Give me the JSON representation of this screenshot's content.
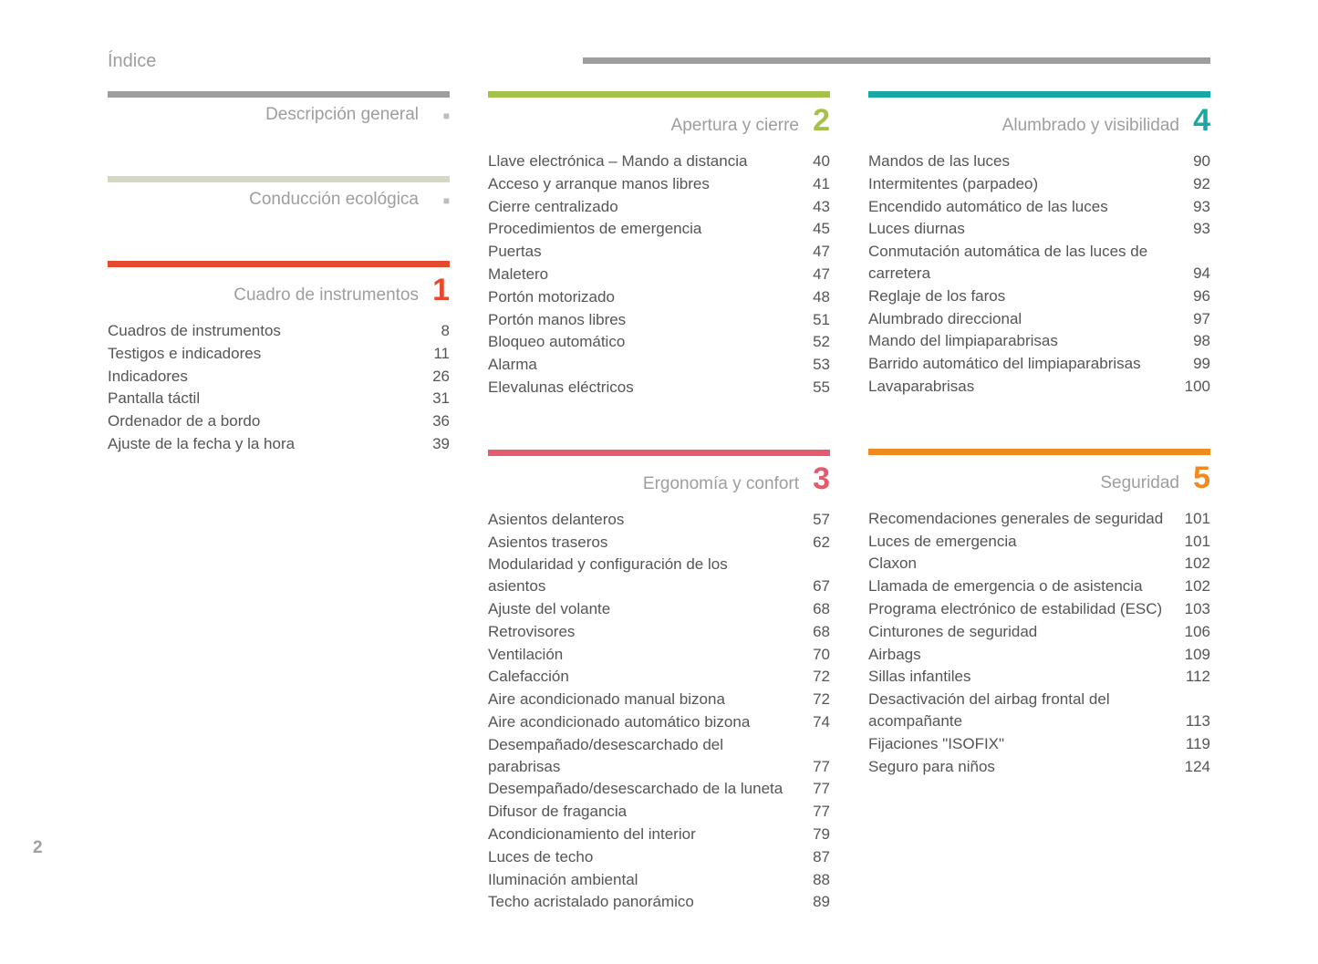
{
  "page_title": "Índice",
  "page_number": "2",
  "top_bar_color": "#9e9e9e",
  "columns": [
    {
      "sections": [
        {
          "title": "Descripción general",
          "rule_color": "#9e9e9e",
          "number": "",
          "number_color": "#9e9e9e",
          "marker": "■",
          "entries": []
        },
        {
          "title": "Conducción ecológica",
          "rule_color": "#d5d8c3",
          "number": "",
          "number_color": "#d5d8c3",
          "marker": "■",
          "entries": []
        },
        {
          "title": "Cuadro de instrumentos",
          "rule_color": "#e64a2e",
          "number": "1",
          "number_color": "#e64a2e",
          "marker": "",
          "entries": [
            {
              "label": "Cuadros de instrumentos",
              "page": "8"
            },
            {
              "label": "Testigos e indicadores",
              "page": "11"
            },
            {
              "label": "Indicadores",
              "page": "26"
            },
            {
              "label": "Pantalla táctil",
              "page": "31"
            },
            {
              "label": "Ordenador de a bordo",
              "page": "36"
            },
            {
              "label": "Ajuste de la fecha y la hora",
              "page": "39"
            }
          ]
        }
      ]
    },
    {
      "sections": [
        {
          "title": "Apertura y cierre",
          "rule_color": "#a4c14a",
          "number": "2",
          "number_color": "#a4c14a",
          "marker": "",
          "entries": [
            {
              "label": "Llave electrónica – Mando a distancia",
              "page": "40"
            },
            {
              "label": "Acceso y arranque manos libres",
              "page": "41"
            },
            {
              "label": "Cierre centralizado",
              "page": "43"
            },
            {
              "label": "Procedimientos de emergencia",
              "page": "45"
            },
            {
              "label": "Puertas",
              "page": "47"
            },
            {
              "label": "Maletero",
              "page": "47"
            },
            {
              "label": "Portón motorizado",
              "page": "48"
            },
            {
              "label": "Portón manos libres",
              "page": "51"
            },
            {
              "label": "Bloqueo automático",
              "page": "52"
            },
            {
              "label": "Alarma",
              "page": "53"
            },
            {
              "label": "Elevalunas eléctricos",
              "page": "55"
            }
          ]
        },
        {
          "title": "Ergonomía y confort",
          "rule_color": "#e35b6c",
          "number": "3",
          "number_color": "#e35b6c",
          "marker": "",
          "entries": [
            {
              "label": "Asientos delanteros",
              "page": "57"
            },
            {
              "label": "Asientos traseros",
              "page": "62"
            },
            {
              "label": "Modularidad y configuración de los asientos",
              "page": "67"
            },
            {
              "label": "Ajuste del volante",
              "page": "68"
            },
            {
              "label": "Retrovisores",
              "page": "68"
            },
            {
              "label": "Ventilación",
              "page": "70"
            },
            {
              "label": "Calefacción",
              "page": "72"
            },
            {
              "label": "Aire acondicionado manual bizona",
              "page": "72"
            },
            {
              "label": "Aire acondicionado automático bizona",
              "page": "74"
            },
            {
              "label": "Desempañado/desescarchado del parabrisas",
              "page": "77"
            },
            {
              "label": "Desempañado/desescarchado de la luneta",
              "page": "77"
            },
            {
              "label": "Difusor de fragancia",
              "page": "77"
            },
            {
              "label": "Acondicionamiento del interior",
              "page": "79"
            },
            {
              "label": "Luces de techo",
              "page": "87"
            },
            {
              "label": "Iluminación ambiental",
              "page": "88"
            },
            {
              "label": "Techo acristalado panorámico",
              "page": "89"
            }
          ]
        }
      ]
    },
    {
      "sections": [
        {
          "title": "Alumbrado y visibilidad",
          "rule_color": "#1aa8a5",
          "number": "4",
          "number_color": "#1aa8a5",
          "marker": "",
          "entries": [
            {
              "label": "Mandos de las luces",
              "page": "90"
            },
            {
              "label": "Intermitentes (parpadeo)",
              "page": "92"
            },
            {
              "label": "Encendido automático de las luces",
              "page": "93"
            },
            {
              "label": "Luces diurnas",
              "page": "93"
            },
            {
              "label": "Conmutación automática de las luces de carretera",
              "page": "94"
            },
            {
              "label": "Reglaje de los faros",
              "page": "96"
            },
            {
              "label": "Alumbrado direccional",
              "page": "97"
            },
            {
              "label": "Mando del limpiaparabrisas",
              "page": "98"
            },
            {
              "label": "Barrido automático del limpiaparabrisas",
              "page": "99"
            },
            {
              "label": "Lavaparabrisas",
              "page": "100"
            }
          ]
        },
        {
          "title": "Seguridad",
          "rule_color": "#f08a1e",
          "number": "5",
          "number_color": "#f08a1e",
          "marker": "",
          "entries": [
            {
              "label": "Recomendaciones generales de seguridad",
              "page": "101"
            },
            {
              "label": "Luces de emergencia",
              "page": "101"
            },
            {
              "label": "Claxon",
              "page": "102"
            },
            {
              "label": "Llamada de emergencia o de asistencia",
              "page": "102"
            },
            {
              "label": "Programa electrónico de estabilidad (ESC)",
              "page": "103"
            },
            {
              "label": "Cinturones de seguridad",
              "page": "106"
            },
            {
              "label": "Airbags",
              "page": "109"
            },
            {
              "label": "Sillas infantiles",
              "page": "112"
            },
            {
              "label": "Desactivación del airbag frontal del acompañante",
              "page": "113"
            },
            {
              "label": "Fijaciones \"ISOFIX\"",
              "page": "119"
            },
            {
              "label": "Seguro para niños",
              "page": "124"
            }
          ]
        }
      ]
    }
  ]
}
